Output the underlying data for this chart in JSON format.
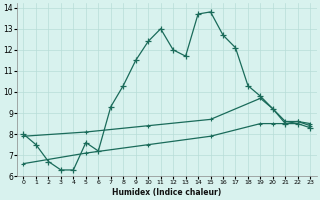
{
  "xlabel": "Humidex (Indice chaleur)",
  "background_color": "#d8f2ee",
  "grid_color": "#b8ddd8",
  "line_color": "#1a6b5a",
  "xlim": [
    -0.5,
    23.5
  ],
  "ylim": [
    6,
    14.2
  ],
  "yticks": [
    6,
    7,
    8,
    9,
    10,
    11,
    12,
    13,
    14
  ],
  "xticks": [
    0,
    1,
    2,
    3,
    4,
    5,
    6,
    7,
    8,
    9,
    10,
    11,
    12,
    13,
    14,
    15,
    16,
    17,
    18,
    19,
    20,
    21,
    22,
    23
  ],
  "main_x": [
    0,
    1,
    2,
    3,
    4,
    5,
    6,
    7,
    8,
    9,
    10,
    11,
    12,
    13,
    14,
    15,
    16,
    17,
    18,
    19,
    20,
    21,
    22,
    23
  ],
  "main_y": [
    8.0,
    7.5,
    6.7,
    6.3,
    6.3,
    7.6,
    7.2,
    9.3,
    10.3,
    11.5,
    12.4,
    13.0,
    12.0,
    11.7,
    13.7,
    13.8,
    12.7,
    12.1,
    10.3,
    9.8,
    9.2,
    8.5,
    8.5,
    8.3
  ],
  "trend1_x": [
    0,
    5,
    10,
    15,
    19,
    20,
    21,
    22,
    23
  ],
  "trend1_y": [
    7.9,
    8.1,
    8.4,
    8.7,
    9.7,
    9.2,
    8.6,
    8.6,
    8.5
  ],
  "trend2_x": [
    0,
    5,
    10,
    15,
    19,
    20,
    21,
    22,
    23
  ],
  "trend2_y": [
    6.6,
    7.1,
    7.5,
    7.9,
    8.5,
    8.5,
    8.5,
    8.6,
    8.4
  ]
}
